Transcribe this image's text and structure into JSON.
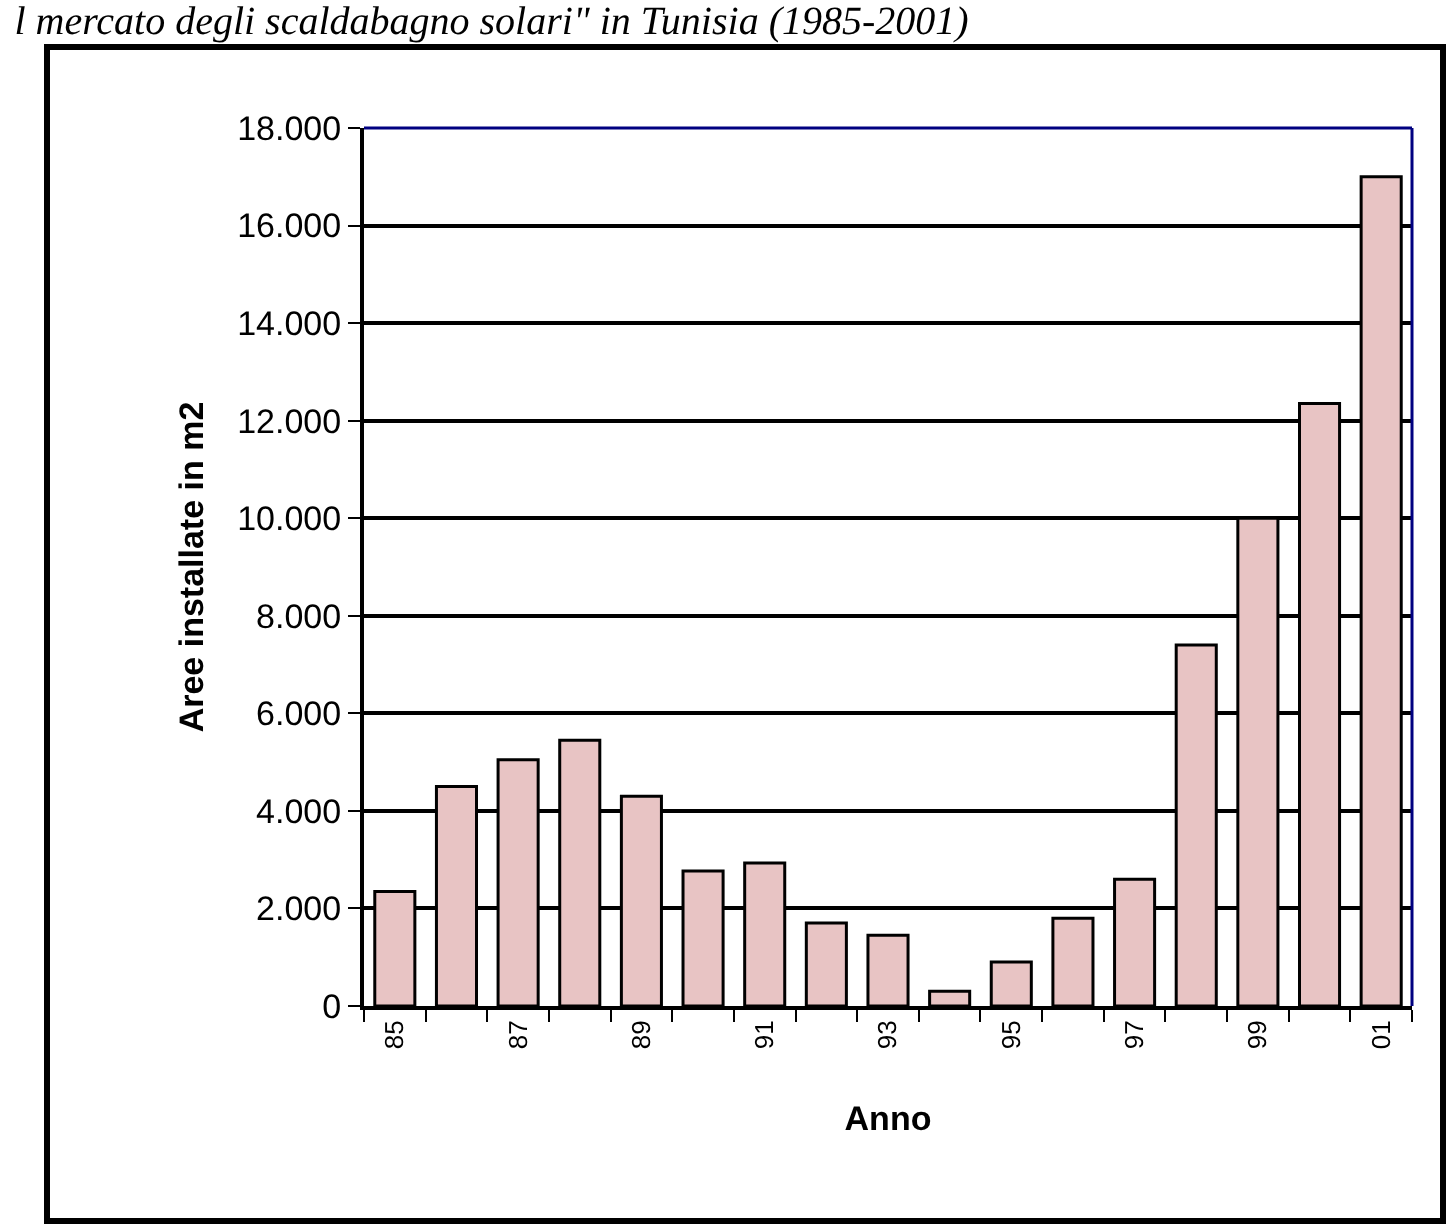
{
  "chart_data": {
    "type": "bar",
    "title": "l mercato degli scaldabagno solari\" in Tunisia (1985-2001)",
    "xlabel": "Anno",
    "ylabel": "Aree installate in m2",
    "categories": [
      "85",
      null,
      "87",
      null,
      "89",
      null,
      "91",
      null,
      "93",
      null,
      "95",
      null,
      "97",
      null,
      "99",
      null,
      "01"
    ],
    "values": [
      2350,
      4500,
      5050,
      5450,
      4300,
      2770,
      2930,
      1700,
      1450,
      300,
      900,
      1800,
      2600,
      7400,
      10000,
      12350,
      17000
    ],
    "color": "#e8c4c4",
    "ylim": [
      0,
      18000
    ],
    "yticks": [
      {
        "value": 0,
        "label": "0"
      },
      {
        "value": 2000,
        "label": "2.000"
      },
      {
        "value": 4000,
        "label": "4.000"
      },
      {
        "value": 6000,
        "label": "6.000"
      },
      {
        "value": 8000,
        "label": "8.000"
      },
      {
        "value": 10000,
        "label": "10.000"
      },
      {
        "value": 12000,
        "label": "12.000"
      },
      {
        "value": 14000,
        "label": "14.000"
      },
      {
        "value": 16000,
        "label": "16.000"
      },
      {
        "value": 18000,
        "label": "18.000"
      }
    ],
    "grid": "y"
  }
}
